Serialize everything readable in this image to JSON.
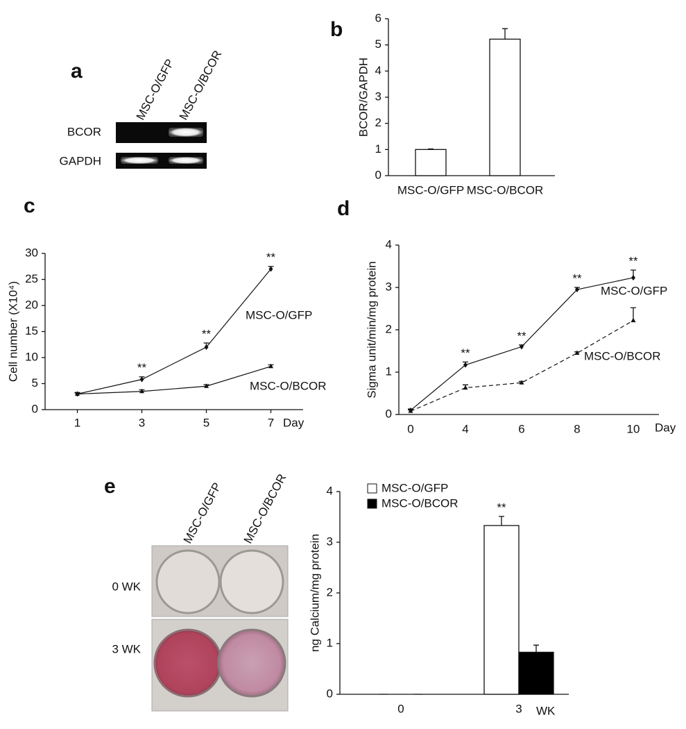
{
  "gel": {
    "panel": "a",
    "lanes": [
      "MSC-O/GFP",
      "MSC-O/BCOR"
    ],
    "rows": [
      "BCOR",
      "GAPDH"
    ]
  },
  "plates": {
    "panel": "e",
    "lanes": [
      "MSC-O/GFP",
      "MSC-O/BCOR"
    ],
    "rows": [
      "0 WK",
      "3 WK"
    ]
  },
  "chart_data": [
    {
      "type": "bar",
      "panel": "b",
      "ylabel": "BCOR/GAPDH",
      "categories": [
        "MSC-O/GFP",
        "MSC-O/BCOR"
      ],
      "values": [
        1.0,
        5.22
      ],
      "errors": [
        0.02,
        0.4
      ],
      "color": "#ffffff",
      "edgecolor": "#111111",
      "ylim": [
        0,
        6
      ],
      "yticks": [
        0,
        1,
        2,
        3,
        4,
        5,
        6
      ]
    },
    {
      "type": "line",
      "panel": "c",
      "ylabel": "Cell number (X10⁴)",
      "xlabel": "Day",
      "x": [
        1,
        3,
        5,
        7
      ],
      "xlim": [
        0,
        8
      ],
      "xticks": [
        1,
        3,
        5,
        7
      ],
      "ylim": [
        0,
        30
      ],
      "yticks": [
        0,
        5,
        10,
        15,
        20,
        25,
        30
      ],
      "series": [
        {
          "name": "MSC-O/GFP",
          "color": "#111111",
          "marker": "diamond",
          "linestyle": "solid",
          "values": [
            3.0,
            5.8,
            12.0,
            27.0
          ],
          "errors": [
            0.3,
            0.5,
            0.8,
            0.5
          ]
        },
        {
          "name": "MSC-O/BCOR",
          "color": "#111111",
          "marker": "triangle",
          "linestyle": "solid",
          "values": [
            3.0,
            3.5,
            4.5,
            8.3
          ],
          "errors": [
            0.2,
            0.3,
            0.3,
            0.3
          ]
        }
      ],
      "annotations": [
        {
          "text": "**",
          "x": 3
        },
        {
          "text": "**",
          "x": 5
        },
        {
          "text": "**",
          "x": 7
        }
      ]
    },
    {
      "type": "line",
      "panel": "d",
      "ylabel": "Sigma unit/min/mg protein",
      "xlabel": "Day",
      "categories": [
        "0",
        "4",
        "6",
        "8",
        "10"
      ],
      "ylim": [
        0,
        4
      ],
      "yticks": [
        0,
        1,
        2,
        3,
        4
      ],
      "series": [
        {
          "name": "MSC-O/GFP",
          "color": "#111111",
          "marker": "diamond",
          "linestyle": "solid",
          "values": [
            0.1,
            1.17,
            1.6,
            2.95,
            3.23
          ],
          "errors": [
            0.03,
            0.07,
            0.04,
            0.05,
            0.18
          ]
        },
        {
          "name": "MSC-O/BCOR",
          "color": "#111111",
          "marker": "triangle",
          "linestyle": "dashed",
          "values": [
            0.08,
            0.63,
            0.75,
            1.45,
            2.22
          ],
          "errors": [
            0.03,
            0.07,
            0.03,
            0.03,
            0.3
          ]
        }
      ],
      "annotations": [
        {
          "text": "**",
          "category": "4"
        },
        {
          "text": "**",
          "category": "6"
        },
        {
          "text": "**",
          "category": "8"
        },
        {
          "text": "**",
          "category": "10"
        }
      ]
    },
    {
      "type": "grouped_bar",
      "ylabel": "ng Calcium/mg protein",
      "xlabel": "WK",
      "categories": [
        "0",
        "3"
      ],
      "ylim": [
        0,
        4
      ],
      "yticks": [
        0,
        1,
        2,
        3,
        4
      ],
      "legend": "upper left",
      "series": [
        {
          "name": "MSC-O/GFP",
          "color": "#ffffff",
          "values": [
            0,
            3.33
          ],
          "errors": [
            0,
            0.18
          ]
        },
        {
          "name": "MSC-O/BCOR",
          "color": "#000000",
          "values": [
            0,
            0.83
          ],
          "errors": [
            0,
            0.14
          ]
        }
      ],
      "annotations": [
        {
          "text": "**",
          "category": "3"
        }
      ]
    }
  ]
}
